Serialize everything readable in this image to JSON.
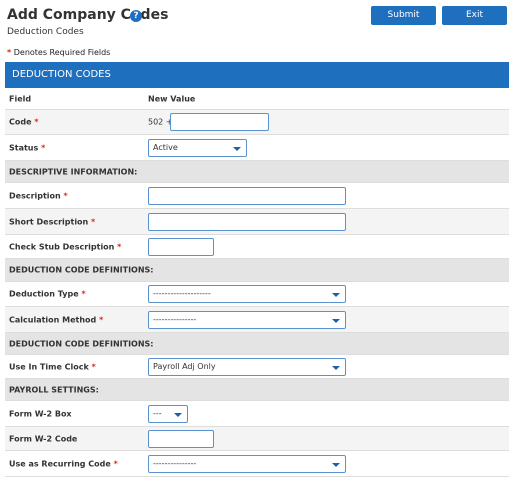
{
  "header": {
    "title": "Add Company Codes",
    "help_icon": "?",
    "subtitle": "Deduction Codes"
  },
  "buttons": [
    "Submit",
    "Exit"
  ],
  "required_mark": "*",
  "required_note": "Denotes Required Fields",
  "section": {
    "title": "DEDUCTION CODES"
  },
  "columns": [
    "Field",
    "New Value"
  ],
  "rows": [
    {
      "label": "Code",
      "prefix": "502 +"
    },
    {
      "label": "Status",
      "value": "Active"
    },
    {
      "label": "DESCRIPTIVE INFORMATION:"
    },
    {
      "label": "Description"
    },
    {
      "label": "Short Description"
    },
    {
      "label": "Check Stub Description"
    },
    {
      "label": "DEDUCTION CODE DEFINITIONS:"
    },
    {
      "label": "Deduction Type",
      "value": "--------------------"
    },
    {
      "label": "Calculation Method",
      "value": "---------------"
    },
    {
      "label": "DEDUCTION CODE DEFINITIONS:"
    },
    {
      "label": "Use In Time Clock",
      "value": "Payroll Adj Only"
    },
    {
      "label": "PAYROLL SETTINGS:"
    },
    {
      "label": "Form W-2 Box",
      "value": "---"
    },
    {
      "label": "Form W-2 Code"
    },
    {
      "label": "Use as Recurring Code",
      "value": "---------------"
    }
  ]
}
